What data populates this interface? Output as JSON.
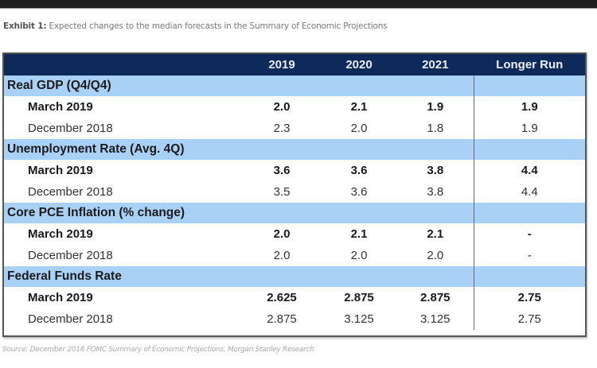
{
  "caption": {
    "prefix": "Exhibit 1:",
    "text": " Expected changes to the median forecasts in the Summary of Economic Projections"
  },
  "table": {
    "columns": [
      "",
      "2019",
      "2020",
      "2021",
      "Longer Run"
    ],
    "sections": [
      {
        "title": "Real GDP (Q4/Q4)",
        "rows": [
          {
            "label": "March 2019",
            "values": [
              "2.0",
              "2.1",
              "1.9",
              "1.9"
            ]
          },
          {
            "label": "December 2018",
            "values": [
              "2.3",
              "2.0",
              "1.8",
              "1.9"
            ]
          }
        ]
      },
      {
        "title": "Unemployment Rate (Avg. 4Q)",
        "rows": [
          {
            "label": "March 2019",
            "values": [
              "3.6",
              "3.6",
              "3.8",
              "4.4"
            ]
          },
          {
            "label": "December 2018",
            "values": [
              "3.5",
              "3.6",
              "3.8",
              "4.4"
            ]
          }
        ]
      },
      {
        "title": "Core PCE Inflation (% change)",
        "rows": [
          {
            "label": "March 2019",
            "values": [
              "2.0",
              "2.1",
              "2.1",
              "-"
            ]
          },
          {
            "label": "December 2018",
            "values": [
              "2.0",
              "2.0",
              "2.0",
              "-"
            ]
          }
        ]
      },
      {
        "title": "Federal Funds Rate",
        "rows": [
          {
            "label": "March 2019",
            "values": [
              "2.625",
              "2.875",
              "2.875",
              "2.75"
            ]
          },
          {
            "label": "December 2018",
            "values": [
              "2.875",
              "3.125",
              "3.125",
              "2.75"
            ]
          }
        ]
      }
    ]
  },
  "source": "Source: December 2018 FOMC Summary of Economic Projections, Morgan Stanley Research",
  "colors": {
    "header_bg": "#0e2a5a",
    "section_bg": "#a9d1f5"
  }
}
